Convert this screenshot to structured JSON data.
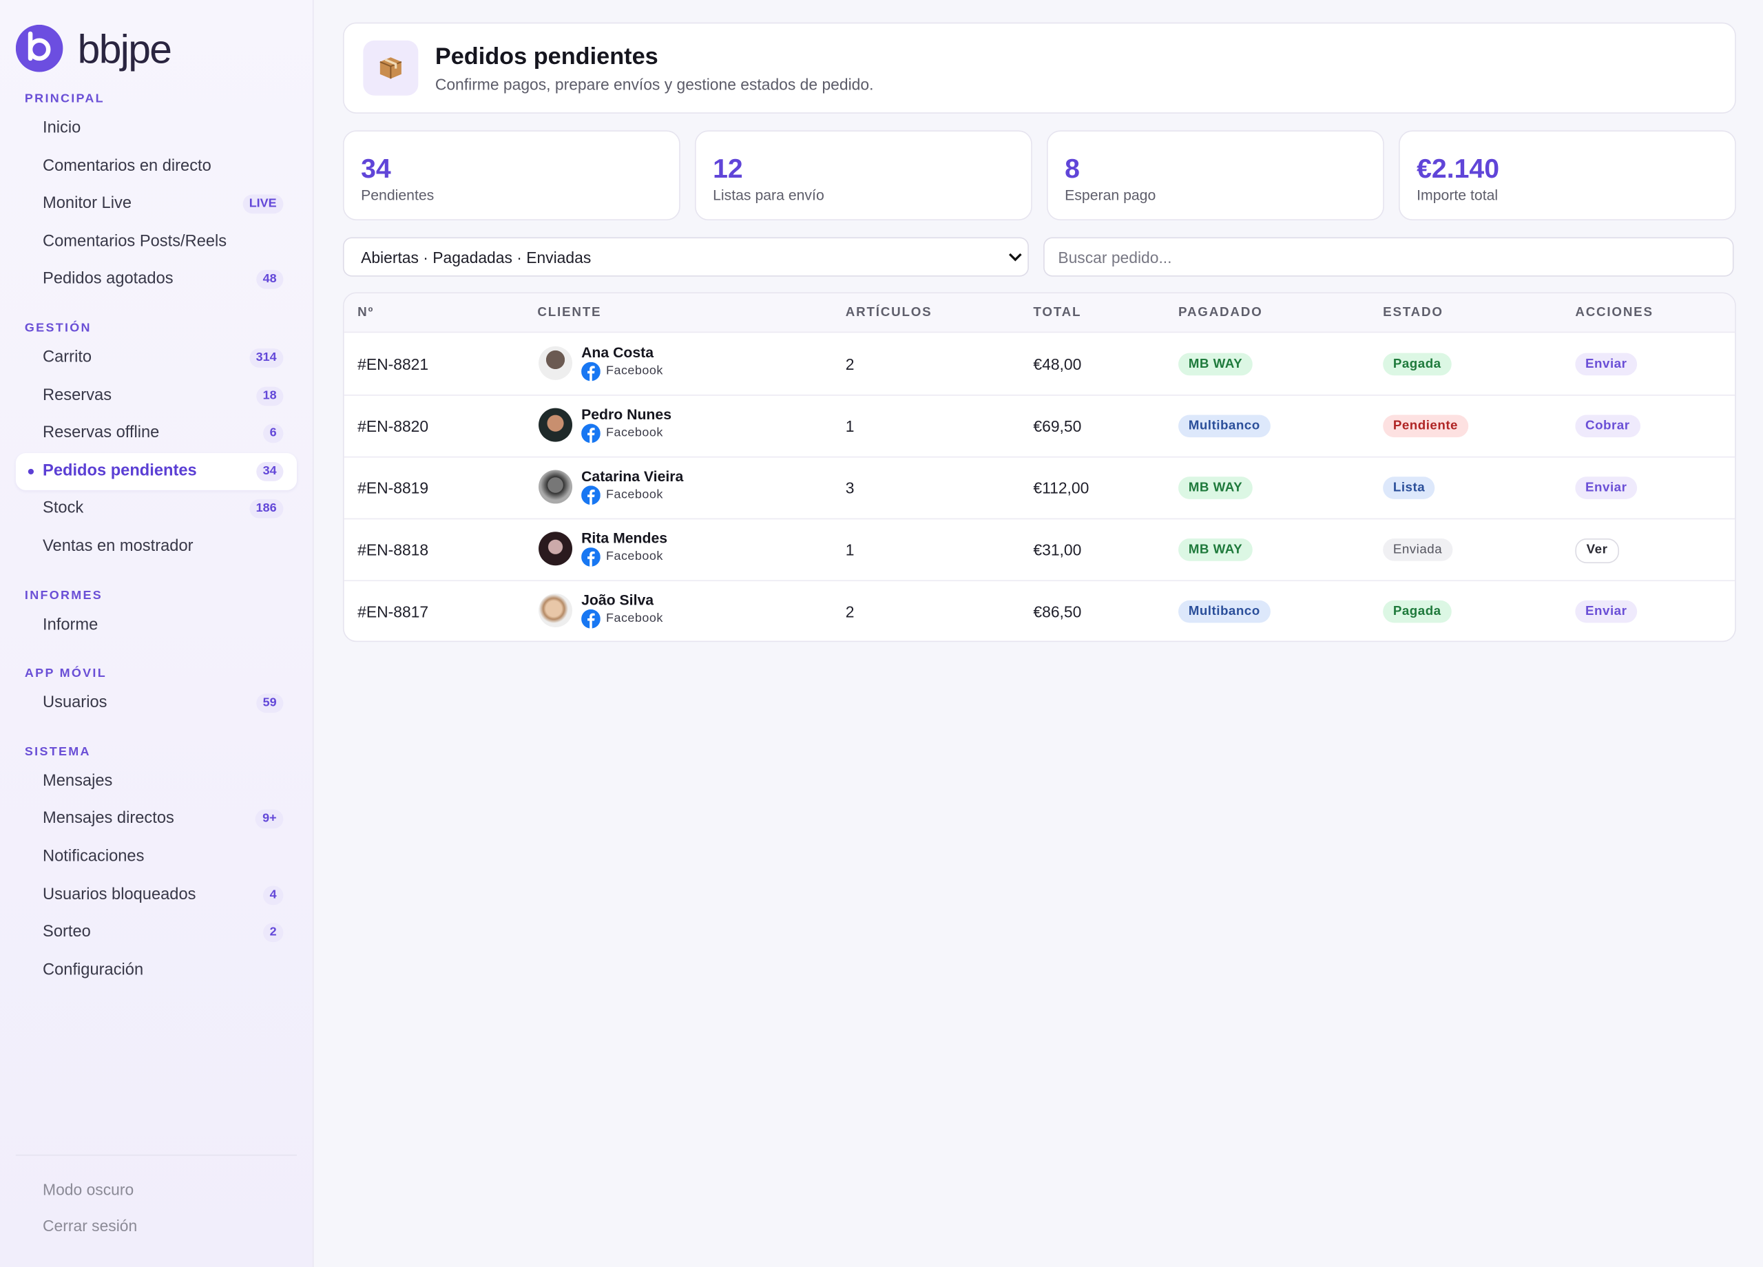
{
  "brand": "bbjpe",
  "sidebar": [
    {
      "title": "PRINCIPAL",
      "items": [
        {
          "label": "Inicio"
        },
        {
          "label": "Comentarios en directo"
        },
        {
          "label": "Monitor Live",
          "badge": "LIVE"
        },
        {
          "label": "Comentarios Posts/Reels"
        },
        {
          "label": "Pedidos agotados",
          "badge": "48"
        }
      ]
    },
    {
      "title": "GESTIÓN",
      "items": [
        {
          "label": "Carrito",
          "badge": "314"
        },
        {
          "label": "Reservas",
          "badge": "18"
        },
        {
          "label": "Reservas offline",
          "badge": "6"
        },
        {
          "label": "Pedidos pendientes",
          "badge": "34",
          "active": true
        },
        {
          "label": "Stock",
          "badge": "186"
        },
        {
          "label": "Ventas en mostrador"
        }
      ]
    },
    {
      "title": "INFORMES",
      "items": [
        {
          "label": "Informe"
        }
      ]
    },
    {
      "title": "APP MÓVIL",
      "items": [
        {
          "label": "Usuarios",
          "badge": "59"
        }
      ]
    },
    {
      "title": "SISTEMA",
      "items": [
        {
          "label": "Mensajes"
        },
        {
          "label": "Mensajes directos",
          "badge": "9+"
        },
        {
          "label": "Notificaciones"
        },
        {
          "label": "Usuarios bloqueados",
          "badge": "4"
        },
        {
          "label": "Sorteo",
          "badge": "2"
        },
        {
          "label": "Configuración"
        }
      ]
    }
  ],
  "footer": [
    "Modo oscuro",
    "Cerrar sesión"
  ],
  "header": {
    "title": "Pedidos pendientes",
    "subtitle": "Confirme pagos, prepare envíos y gestione estados de pedido."
  },
  "stats": [
    {
      "value": "34",
      "label": "Pendientes"
    },
    {
      "value": "12",
      "label": "Listas para envío"
    },
    {
      "value": "8",
      "label": "Esperan pago"
    },
    {
      "value": "€2.140",
      "label": "Importe total"
    }
  ],
  "filter": "Abiertas · Pagadadas · Enviadas",
  "search_placeholder": "Buscar pedido...",
  "table": {
    "columns": [
      "Nº",
      "CLIENTE",
      "ARTÍCULOS",
      "TOTAL",
      "PAGADADO",
      "ESTADO",
      "ACCIONES"
    ],
    "rows": [
      {
        "id": "#EN-8821",
        "name": "Ana Costa",
        "source": "Facebook",
        "items": "2",
        "total": "€48,00",
        "payment": "MB WAY",
        "status": "Pagada",
        "action": "Enviar"
      },
      {
        "id": "#EN-8820",
        "name": "Pedro Nunes",
        "source": "Facebook",
        "items": "1",
        "total": "€69,50",
        "payment": "Multibanco",
        "status": "Pendiente",
        "action": "Cobrar"
      },
      {
        "id": "#EN-8819",
        "name": "Catarina Vieira",
        "source": "Facebook",
        "items": "3",
        "total": "€112,00",
        "payment": "MB WAY",
        "status": "Lista",
        "action": "Enviar"
      },
      {
        "id": "#EN-8818",
        "name": "Rita Mendes",
        "source": "Facebook",
        "items": "1",
        "total": "€31,00",
        "payment": "MB WAY",
        "status": "Enviada",
        "action": "Ver"
      },
      {
        "id": "#EN-8817",
        "name": "João Silva",
        "source": "Facebook",
        "items": "2",
        "total": "€86,50",
        "payment": "Multibanco",
        "status": "Pagada",
        "action": "Enviar"
      }
    ]
  }
}
